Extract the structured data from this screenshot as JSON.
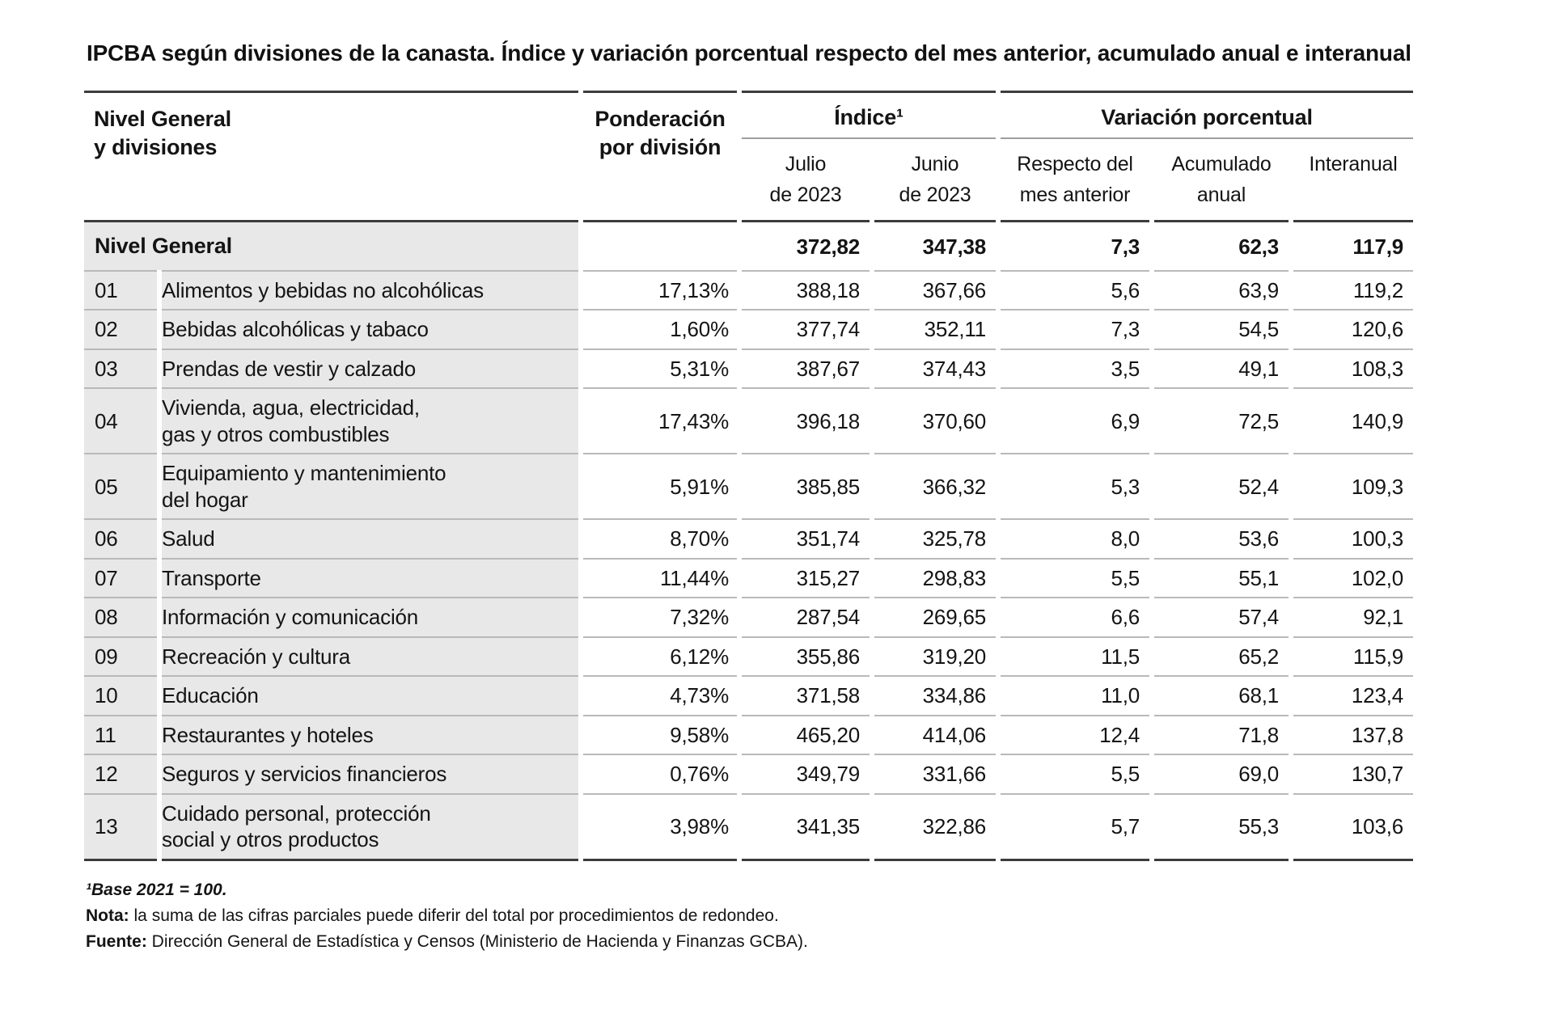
{
  "title": "IPCBA según divisiones de la canasta. Índice y variación porcentual respecto del mes anterior, acumulado anual e interanual",
  "chart_data": {
    "type": "table",
    "title": "IPCBA según divisiones de la canasta. Índice y variación porcentual respecto del mes anterior, acumulado anual e interanual",
    "header": {
      "divisions": "Nivel General\ny divisiones",
      "weight": "Ponderación\npor división",
      "index_group": "Índice¹",
      "variation_group": "Variación porcentual",
      "sub_columns": [
        "Julio\nde 2023",
        "Junio\nde 2023",
        "Respecto del\nmes anterior",
        "Acumulado\nanual",
        "Interanual"
      ]
    },
    "total_row": {
      "label": "Nivel General",
      "weight": "",
      "index_jul": "372,82",
      "index_jun": "347,38",
      "var_mes": "7,3",
      "var_acum": "62,3",
      "var_inter": "117,9"
    },
    "rows": [
      {
        "code": "01",
        "name": "Alimentos y bebidas no alcohólicas",
        "weight": "17,13%",
        "index_jul": "388,18",
        "index_jun": "367,66",
        "var_mes": "5,6",
        "var_acum": "63,9",
        "var_inter": "119,2"
      },
      {
        "code": "02",
        "name": "Bebidas alcohólicas y tabaco",
        "weight": "1,60%",
        "index_jul": "377,74",
        "index_jun": "352,11",
        "var_mes": "7,3",
        "var_acum": "54,5",
        "var_inter": "120,6"
      },
      {
        "code": "03",
        "name": "Prendas de vestir y calzado",
        "weight": "5,31%",
        "index_jul": "387,67",
        "index_jun": "374,43",
        "var_mes": "3,5",
        "var_acum": "49,1",
        "var_inter": "108,3"
      },
      {
        "code": "04",
        "name": "Vivienda, agua, electricidad,\ngas y otros combustibles",
        "weight": "17,43%",
        "index_jul": "396,18",
        "index_jun": "370,60",
        "var_mes": "6,9",
        "var_acum": "72,5",
        "var_inter": "140,9"
      },
      {
        "code": "05",
        "name": "Equipamiento y mantenimiento\ndel hogar",
        "weight": "5,91%",
        "index_jul": "385,85",
        "index_jun": "366,32",
        "var_mes": "5,3",
        "var_acum": "52,4",
        "var_inter": "109,3"
      },
      {
        "code": "06",
        "name": "Salud",
        "weight": "8,70%",
        "index_jul": "351,74",
        "index_jun": "325,78",
        "var_mes": "8,0",
        "var_acum": "53,6",
        "var_inter": "100,3"
      },
      {
        "code": "07",
        "name": "Transporte",
        "weight": "11,44%",
        "index_jul": "315,27",
        "index_jun": "298,83",
        "var_mes": "5,5",
        "var_acum": "55,1",
        "var_inter": "102,0"
      },
      {
        "code": "08",
        "name": "Información y comunicación",
        "weight": "7,32%",
        "index_jul": "287,54",
        "index_jun": "269,65",
        "var_mes": "6,6",
        "var_acum": "57,4",
        "var_inter": "92,1"
      },
      {
        "code": "09",
        "name": "Recreación y cultura",
        "weight": "6,12%",
        "index_jul": "355,86",
        "index_jun": "319,20",
        "var_mes": "11,5",
        "var_acum": "65,2",
        "var_inter": "115,9"
      },
      {
        "code": "10",
        "name": "Educación",
        "weight": "4,73%",
        "index_jul": "371,58",
        "index_jun": "334,86",
        "var_mes": "11,0",
        "var_acum": "68,1",
        "var_inter": "123,4"
      },
      {
        "code": "11",
        "name": "Restaurantes y hoteles",
        "weight": "9,58%",
        "index_jul": "465,20",
        "index_jun": "414,06",
        "var_mes": "12,4",
        "var_acum": "71,8",
        "var_inter": "137,8"
      },
      {
        "code": "12",
        "name": "Seguros y servicios financieros",
        "weight": "0,76%",
        "index_jul": "349,79",
        "index_jun": "331,66",
        "var_mes": "5,5",
        "var_acum": "69,0",
        "var_inter": "130,7"
      },
      {
        "code": "13",
        "name": "Cuidado personal, protección\nsocial y otros productos",
        "weight": "3,98%",
        "index_jul": "341,35",
        "index_jun": "322,86",
        "var_mes": "5,7",
        "var_acum": "55,3",
        "var_inter": "103,6"
      }
    ]
  },
  "footnotes": {
    "base": "¹Base 2021 = 100.",
    "nota_label": "Nota:",
    "nota_text": "la suma de las cifras parciales puede diferir del total por procedimientos de redondeo.",
    "fuente_label": "Fuente:",
    "fuente_text": "Dirección General de Estadística y Censos (Ministerio de Hacienda y Finanzas GCBA)."
  }
}
